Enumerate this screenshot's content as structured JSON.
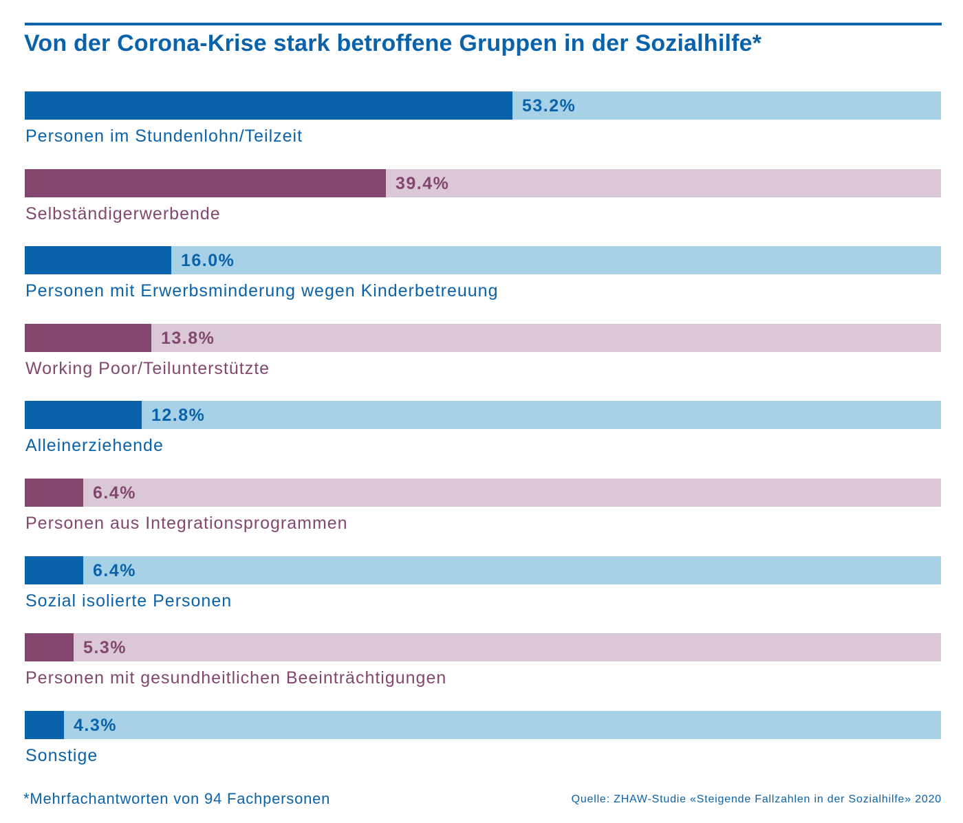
{
  "colors": {
    "blue_dark": "#0a62ab",
    "blue_light": "#a7d1e6",
    "purple_dark": "#83476f",
    "purple_light": "#dbc8d6"
  },
  "chart_data": {
    "type": "bar",
    "orientation": "horizontal",
    "title": "Von der Corona-Krise stark betroffene Gruppen in der Sozialhilfe*",
    "xlim": [
      0,
      100
    ],
    "grid": false,
    "categories": [
      "Personen im Stundenlohn/Teilzeit",
      "Selbständigerwerbende",
      "Personen mit Erwerbsminderung wegen Kinderbetreuung",
      "Working Poor/Teilunterstützte",
      "Alleinerziehende",
      "Personen aus Integrationsprogrammen",
      "Sozial isolierte Personen",
      "Personen mit gesundheitlichen Beeinträchtigungen",
      "Sonstige"
    ],
    "values": [
      53.2,
      39.4,
      16.0,
      13.8,
      12.8,
      6.4,
      6.4,
      5.3,
      4.3
    ],
    "value_labels": [
      "53.2%",
      "39.4%",
      "16.0%",
      "13.8%",
      "12.8%",
      "6.4%",
      "6.4%",
      "5.3%",
      "4.3%"
    ],
    "bar_colors": [
      "blue",
      "purple",
      "blue",
      "purple",
      "blue",
      "purple",
      "blue",
      "purple",
      "blue"
    ]
  },
  "footnote": "*Mehrfachantworten von 94 Fachpersonen",
  "source": "Quelle: ZHAW-Studie «Steigende Fallzahlen in der Sozialhilfe» 2020"
}
